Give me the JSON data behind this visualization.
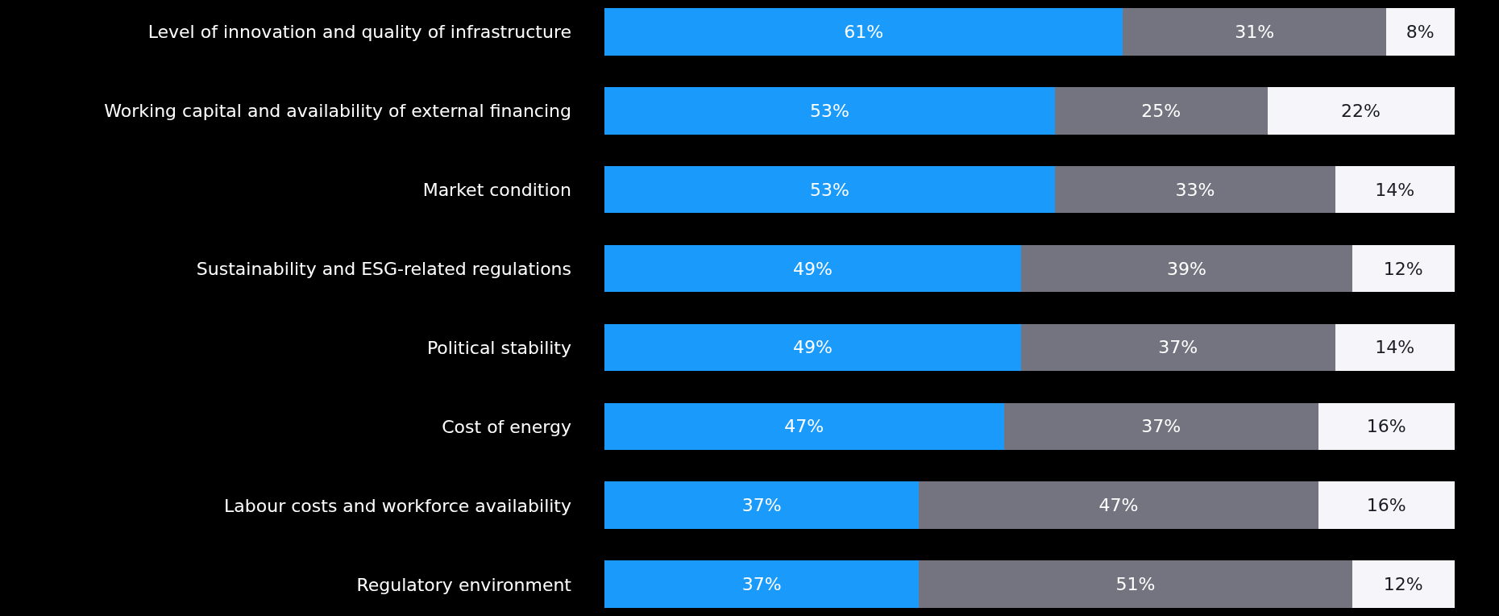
{
  "chart_data": {
    "type": "bar",
    "orientation": "horizontal",
    "stacked": true,
    "tick_labels": "y",
    "categories": [
      "Level of innovation and quality of infrastructure",
      "Working capital and availability of external financing",
      "Market condition",
      "Sustainability and ESG-related regulations",
      "Political stability",
      "Cost of energy",
      "Labour costs and workforce availability",
      "Regulatory environment"
    ],
    "series": [
      {
        "color": "#1a9bfc",
        "values": [
          61,
          53,
          53,
          49,
          49,
          47,
          37,
          37
        ],
        "value_labels": [
          "61%",
          "53%",
          "53%",
          "49%",
          "49%",
          "47%",
          "37%",
          "37%"
        ]
      },
      {
        "color": "#747480",
        "values": [
          31,
          25,
          33,
          39,
          37,
          37,
          47,
          51
        ],
        "value_labels": [
          "31%",
          "25%",
          "33%",
          "39%",
          "37%",
          "37%",
          "47%",
          "51%"
        ]
      },
      {
        "color": "#f6f6fa",
        "values": [
          8,
          22,
          14,
          12,
          14,
          16,
          16,
          12
        ],
        "value_labels": [
          "8%",
          "22%",
          "14%",
          "12%",
          "14%",
          "16%",
          "16%",
          "12%"
        ]
      }
    ]
  }
}
